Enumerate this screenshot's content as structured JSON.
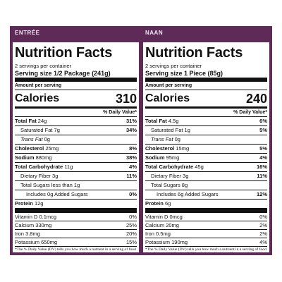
{
  "labels": [
    {
      "header": "ENTRÉE",
      "title": "Nutrition Facts",
      "servings": "2 servings per container",
      "serving_size": "Serving size 1/2 Package (241g)",
      "amount_per_serving": "Amount per serving",
      "calories_label": "Calories",
      "calories": 310,
      "dv_header": "% Daily Value*",
      "nutrients": [
        {
          "name": "Total Fat",
          "amount": "24g",
          "dv": "31%"
        },
        {
          "name": "Saturated Fat",
          "amount": "7g",
          "dv": "34%"
        },
        {
          "name": "Trans Fat",
          "amount": "0g",
          "dv": ""
        },
        {
          "name": "Cholesterol",
          "amount": "25mg",
          "dv": "8%"
        },
        {
          "name": "Sodium",
          "amount": "880mg",
          "dv": "38%"
        },
        {
          "name": "Total Carbohydrate",
          "amount": "11g",
          "dv": "4%"
        },
        {
          "name": "Dietary Fiber",
          "amount": "3g",
          "dv": "11%"
        },
        {
          "name": "Total Sugars",
          "amount": "less than 1g",
          "dv": ""
        },
        {
          "name": "Includes",
          "amount": "0g Added Sugars",
          "dv": "0%"
        },
        {
          "name": "Protein",
          "amount": "12g",
          "dv": ""
        }
      ],
      "vitamins": [
        {
          "name": "Vitamin D",
          "amount": "0.1mcg",
          "dv": "0%"
        },
        {
          "name": "Calcium",
          "amount": "330mg",
          "dv": "25%"
        },
        {
          "name": "Iron",
          "amount": "3.8mg",
          "dv": "20%"
        },
        {
          "name": "Potassium",
          "amount": "650mg",
          "dv": "15%"
        }
      ],
      "footnote": "*The % Daily Value (DV) tells you how much a nutrient in a serving of food contributes to a daily diet. 2,000 calories a day is used for general nutrition advice."
    },
    {
      "header": "NAAN",
      "title": "Nutrition Facts",
      "servings": "2 servings per container",
      "serving_size": "Serving size 1 Piece (85g)",
      "amount_per_serving": "Amount per serving",
      "calories_label": "Calories",
      "calories": 240,
      "dv_header": "% Daily Value*",
      "nutrients": [
        {
          "name": "Total Fat",
          "amount": "4.5g",
          "dv": "6%"
        },
        {
          "name": "Saturated Fat",
          "amount": "1g",
          "dv": "5%"
        },
        {
          "name": "Trans Fat",
          "amount": "0g",
          "dv": ""
        },
        {
          "name": "Cholesterol",
          "amount": "15mg",
          "dv": "5%"
        },
        {
          "name": "Sodium",
          "amount": "95mg",
          "dv": "4%"
        },
        {
          "name": "Total Carbohydrate",
          "amount": "45g",
          "dv": "16%"
        },
        {
          "name": "Dietary Fiber",
          "amount": "3g",
          "dv": "11%"
        },
        {
          "name": "Total Sugars",
          "amount": "8g",
          "dv": ""
        },
        {
          "name": "Includes",
          "amount": "6g Added Sugars",
          "dv": "12%"
        },
        {
          "name": "Protein",
          "amount": "6g",
          "dv": ""
        }
      ],
      "vitamins": [
        {
          "name": "Vitamin D",
          "amount": "0mcg",
          "dv": "0%"
        },
        {
          "name": "Calcium",
          "amount": "20mg",
          "dv": "2%"
        },
        {
          "name": "Iron",
          "amount": "0.5mg",
          "dv": "2%"
        },
        {
          "name": "Potassium",
          "amount": "190mg",
          "dv": "4%"
        }
      ],
      "footnote": "*The % Daily Value (DV) tells you how much a nutrient in a serving of food contributes to a daily diet. 2,000 calories a day is used for general nutrition advice."
    }
  ]
}
